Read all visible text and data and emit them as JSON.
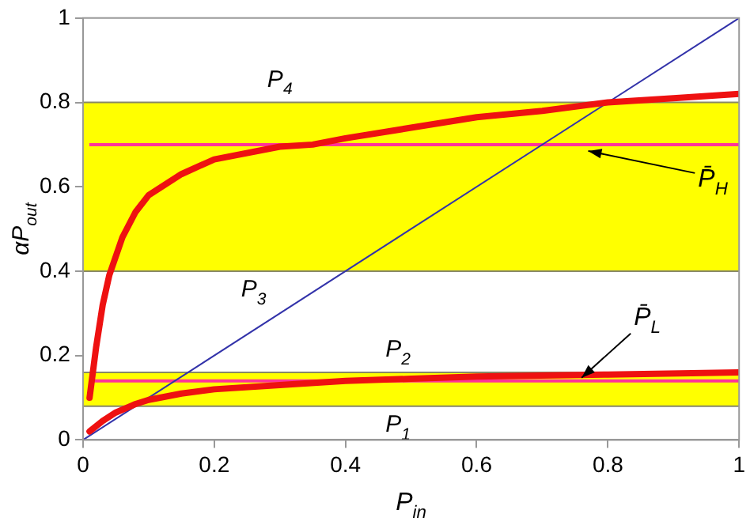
{
  "chart_data": {
    "type": "line",
    "xlabel": "P$_{in}$",
    "ylabel": "αP$_{out}$",
    "series": [
      {
        "color": "#ee1111",
        "x": [
          0.01,
          0.02,
          0.03,
          0.04,
          0.06,
          0.08,
          0.1,
          0.15,
          0.2,
          0.3,
          0.35,
          0.4,
          0.5,
          0.6,
          0.7,
          0.8,
          0.9,
          1
        ],
        "values": [
          0.1,
          0.22,
          0.32,
          0.39,
          0.48,
          0.54,
          0.58,
          0.63,
          0.665,
          0.695,
          0.7,
          0.715,
          0.74,
          0.765,
          0.78,
          0.8,
          0.81,
          0.82
        ]
      },
      {
        "color": "#ee1111",
        "x": [
          0.01,
          0.03,
          0.05,
          0.08,
          0.1,
          0.15,
          0.2,
          0.3,
          0.4,
          0.5,
          0.6,
          0.8,
          1
        ],
        "values": [
          0.02,
          0.045,
          0.065,
          0.085,
          0.095,
          0.11,
          0.12,
          0.13,
          0.14,
          0.145,
          0.15,
          0.155,
          0.16
        ]
      },
      {
        "color": "#3333aa",
        "x": [
          0,
          1
        ],
        "values": [
          0,
          1
        ]
      }
    ],
    "bands": [
      {
        "axis": "y",
        "from": 0.08,
        "to": 0.16,
        "color": "#ffff00"
      },
      {
        "axis": "y",
        "from": 0.4,
        "to": 0.8,
        "color": "#ffff00"
      }
    ],
    "ref_lines": [
      {
        "axis": "y",
        "value": 0.7,
        "label": "P̄$_{H}$",
        "color": "#ff3399"
      },
      {
        "axis": "y",
        "value": 0.14,
        "label": "P̄$_{L}$",
        "color": "#ff3399"
      },
      {
        "axis": "y",
        "value": 0.8,
        "label": "P$_{4}$",
        "color": "#888866"
      },
      {
        "axis": "y",
        "value": 0.4,
        "label": "P$_{3}$",
        "color": "#888866"
      },
      {
        "axis": "y",
        "value": 0.16,
        "label": "P$_{2}$",
        "color": "#888866"
      },
      {
        "axis": "y",
        "value": 0.08,
        "label": "P$_{1}$",
        "color": "#888866"
      }
    ],
    "xlim": [
      0,
      1
    ],
    "ylim": [
      0,
      1
    ],
    "xticks": [
      0,
      0.2,
      0.4,
      0.6,
      0.8,
      1
    ],
    "yticks": [
      0,
      0.2,
      0.4,
      0.6,
      0.8,
      1
    ],
    "grid": false,
    "legend": false,
    "marker": "none",
    "line_style": "solid"
  }
}
